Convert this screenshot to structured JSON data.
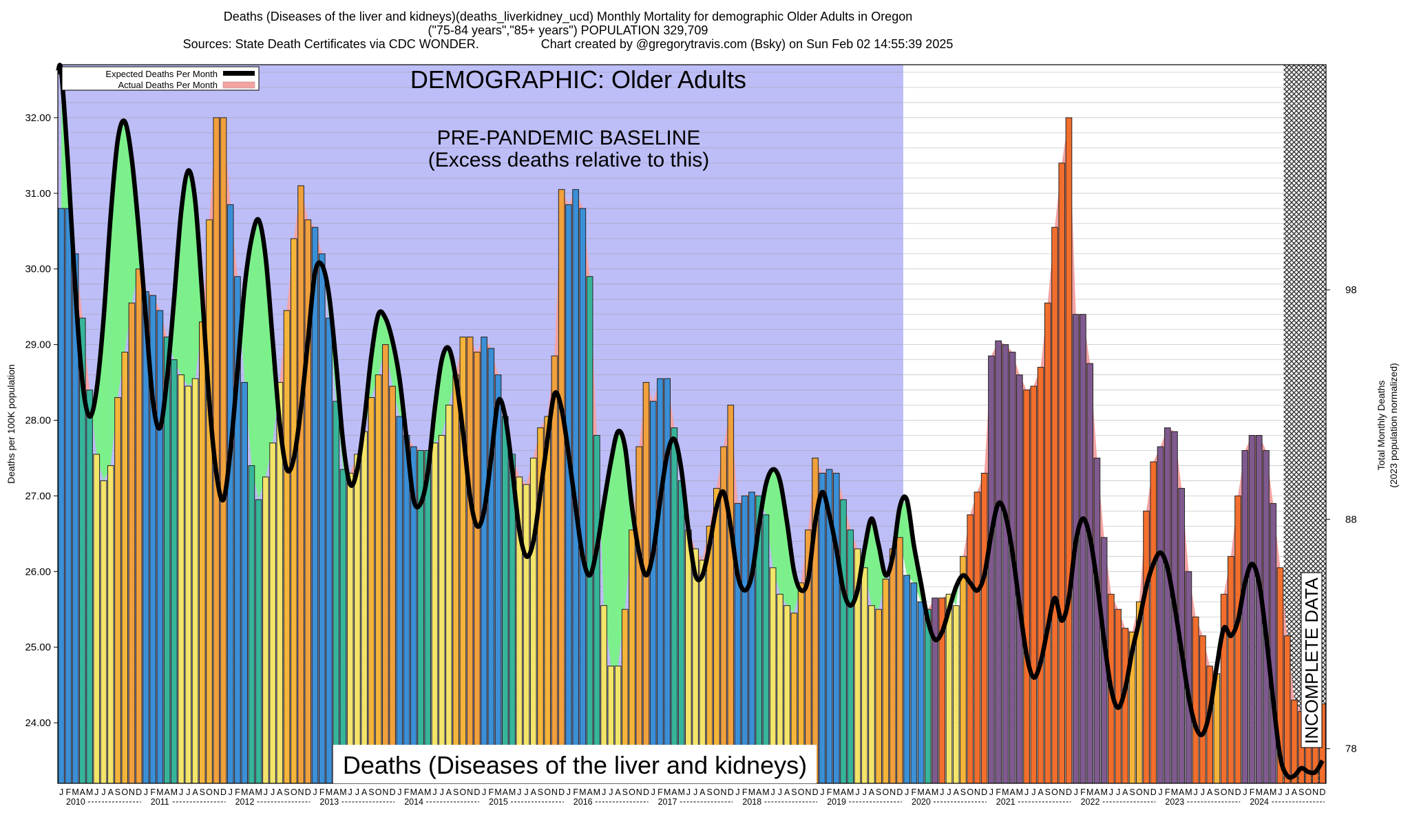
{
  "header": {
    "line1": "Deaths (Diseases of the liver and kidneys)(deaths_liverkidney_ucd) Monthly Mortality for demographic Older Adults in Oregon",
    "line2": "(\"75-84 years\",\"85+ years\") POPULATION 329,709",
    "line3_source": "Sources: State Death Certificates via CDC WONDER.",
    "line3_credit": "Chart created by @gregorytravis.com (Bsky) on Sun Feb 02 14:55:39 2025"
  },
  "chart_data": {
    "type": "bar",
    "title": "Deaths (Diseases of the liver and kidneys)",
    "demographic_label": "DEMOGRAPHIC: Older Adults",
    "baseline_label_1": "PRE-PANDEMIC BASELINE",
    "baseline_label_2": "(Excess deaths relative to this)",
    "incomplete_label": "INCOMPLETE DATA",
    "ylabel": "Deaths per 100K population",
    "y2label_1": "Total Monthly Deaths",
    "y2label_2": "(2023 population normalized)",
    "ylim": [
      23.2,
      32.7
    ],
    "yticks": [
      "24.00",
      "25.00",
      "26.00",
      "27.00",
      "28.00",
      "29.00",
      "30.00",
      "31.00",
      "32.00"
    ],
    "y2ticks": [
      "78",
      "88",
      "98"
    ],
    "y2_values": [
      78,
      88,
      98
    ],
    "month_letters": [
      "J",
      "F",
      "M",
      "A",
      "M",
      "J",
      "J",
      "A",
      "S",
      "O",
      "N",
      "D"
    ],
    "years": [
      "2010",
      "2011",
      "2012",
      "2013",
      "2014",
      "2015",
      "2016",
      "2017",
      "2018",
      "2019",
      "2020",
      "2021",
      "2022",
      "2023",
      "2024"
    ],
    "baseline_period": [
      "2010-01",
      "2019-12"
    ],
    "incomplete_period": [
      "2024-07",
      "2024-12"
    ],
    "legend": [
      {
        "name": "Expected Deaths Per Month",
        "color": "#000000"
      },
      {
        "name": "Actual Deaths Per Month",
        "color": "#f4a3a3"
      }
    ],
    "grid": true,
    "legend_position": "top-left",
    "colors": {
      "baseline_bg": "#bdbdf7",
      "incomplete_bg": "#c9c9c9",
      "deficit_fill": "#7cf08a",
      "excess_fill": "#f4a3a3",
      "expected_line": "#000000"
    },
    "series": [
      {
        "name": "Actual Deaths Per Month",
        "values": [
          30.8,
          30.8,
          30.2,
          29.35,
          28.4,
          27.55,
          27.2,
          27.4,
          28.3,
          28.9,
          29.55,
          30.0,
          29.7,
          29.65,
          29.45,
          29.1,
          28.8,
          28.6,
          28.45,
          28.55,
          29.3,
          30.65,
          32.0,
          32.0,
          30.85,
          29.9,
          28.5,
          27.4,
          26.95,
          27.25,
          27.7,
          28.5,
          29.45,
          30.4,
          31.1,
          30.65,
          30.55,
          30.2,
          29.35,
          28.25,
          27.35,
          27.3,
          27.55,
          27.85,
          28.3,
          28.6,
          29.0,
          28.45,
          28.05,
          27.8,
          27.65,
          27.6,
          27.6,
          27.7,
          27.8,
          28.2,
          28.6,
          29.1,
          29.1,
          28.9,
          29.1,
          28.95,
          28.6,
          28.05,
          27.55,
          27.25,
          27.15,
          27.5,
          27.9,
          28.05,
          28.85,
          31.05,
          30.85,
          31.05,
          30.8,
          29.9,
          27.8,
          25.55,
          24.75,
          24.75,
          25.5,
          26.55,
          27.65,
          28.5,
          28.25,
          28.55,
          28.55,
          27.9,
          27.2,
          26.55,
          26.3,
          26.15,
          26.6,
          27.1,
          27.65,
          28.2,
          26.9,
          27.0,
          27.05,
          27.0,
          26.75,
          26.05,
          25.7,
          25.55,
          25.45,
          25.85,
          26.55,
          27.5,
          27.3,
          27.35,
          27.3,
          26.95,
          26.55,
          26.3,
          26.05,
          25.55,
          25.5,
          25.9,
          26.3,
          26.45,
          25.95,
          25.85,
          25.6,
          25.5,
          25.65,
          25.65,
          25.7,
          25.55,
          26.2,
          26.75,
          27.05,
          27.3,
          28.85,
          29.05,
          29.0,
          28.9,
          28.6,
          28.4,
          28.45,
          28.7,
          29.55,
          30.55,
          31.4,
          32.0,
          29.4,
          29.4,
          28.75,
          27.5,
          26.45,
          25.7,
          25.5,
          25.25,
          25.2,
          25.6,
          26.8,
          27.45,
          27.65,
          27.9,
          27.85,
          27.1,
          26.0,
          25.4,
          25.15,
          24.75,
          24.65,
          25.7,
          26.2,
          27.0,
          27.6,
          27.8,
          27.8,
          27.6,
          26.9,
          26.05,
          25.15,
          24.3,
          24.15,
          24.0,
          23.85,
          24.25
        ]
      },
      {
        "name": "Expected Deaths Per Month",
        "values": [
          32.6,
          31.3,
          29.7,
          28.5,
          28.05,
          28.4,
          29.35,
          30.7,
          31.7,
          31.95,
          31.45,
          30.5,
          29.35,
          28.25,
          27.9,
          28.55,
          29.6,
          30.75,
          31.3,
          30.9,
          29.65,
          28.25,
          27.3,
          26.95,
          27.6,
          28.65,
          29.75,
          30.4,
          30.65,
          30.15,
          29.05,
          27.95,
          27.35,
          27.5,
          28.15,
          29.05,
          29.95,
          30.05,
          29.65,
          28.75,
          27.7,
          27.15,
          27.35,
          28.0,
          28.85,
          29.4,
          29.35,
          29.05,
          28.55,
          27.75,
          26.95,
          26.9,
          27.3,
          28.15,
          28.8,
          28.95,
          28.55,
          27.85,
          27.0,
          26.6,
          26.8,
          27.5,
          28.25,
          28.05,
          27.35,
          26.55,
          26.2,
          26.4,
          27.05,
          27.75,
          28.35,
          28.15,
          27.55,
          26.85,
          26.2,
          25.95,
          26.3,
          26.9,
          27.45,
          27.85,
          27.65,
          26.85,
          26.25,
          25.95,
          26.25,
          26.95,
          27.55,
          27.75,
          27.35,
          26.55,
          25.95,
          25.95,
          26.35,
          26.85,
          27.05,
          26.6,
          25.95,
          25.75,
          25.95,
          26.6,
          27.15,
          27.35,
          27.2,
          26.65,
          26.0,
          25.75,
          25.9,
          26.65,
          27.05,
          26.75,
          26.3,
          25.75,
          25.55,
          25.75,
          26.3,
          26.7,
          26.35,
          25.95,
          26.2,
          26.85,
          26.95,
          26.35,
          25.85,
          25.35,
          25.1,
          25.2,
          25.5,
          25.8,
          25.95,
          25.85,
          25.75,
          25.95,
          26.5,
          26.9,
          26.75,
          26.25,
          25.55,
          24.9,
          24.6,
          24.8,
          25.25,
          25.65,
          25.35,
          25.65,
          26.4,
          26.7,
          26.45,
          25.85,
          25.1,
          24.45,
          24.2,
          24.45,
          24.95,
          25.35,
          25.8,
          26.1,
          26.25,
          26.05,
          25.55,
          24.95,
          24.35,
          23.95,
          23.85,
          24.15,
          24.75,
          25.25,
          25.15,
          25.35,
          25.85,
          26.1,
          25.85,
          25.15,
          24.3,
          23.55,
          23.3,
          23.3,
          23.4,
          23.35,
          23.35,
          23.5
        ]
      }
    ]
  }
}
